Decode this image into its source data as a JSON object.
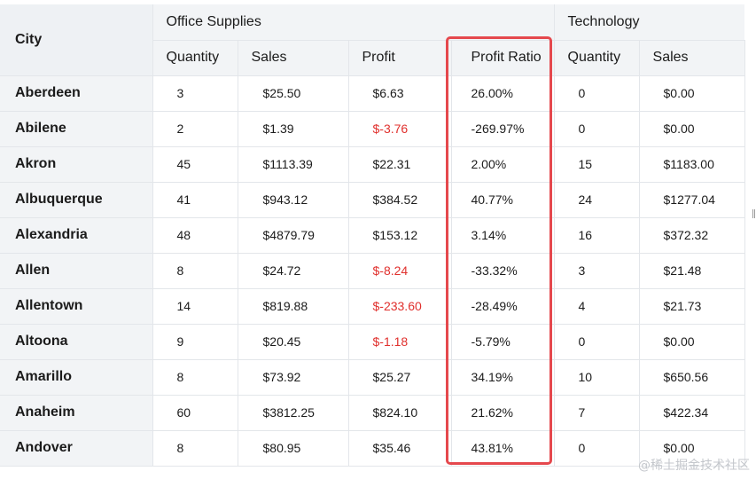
{
  "table": {
    "city_header": "City",
    "groups": {
      "office": "Office Supplies",
      "tech": "Technology"
    },
    "sub_headers": {
      "office_quantity": "Quantity",
      "office_sales": "Sales",
      "office_profit": "Profit",
      "office_ratio": "Profit Ratio",
      "tech_quantity": "Quantity",
      "tech_sales": "Sales"
    },
    "rows": [
      {
        "city": "Aberdeen",
        "oq": "3",
        "os": "$25.50",
        "op": "$6.63",
        "or": "26.00%",
        "tq": "0",
        "ts": "$0.00"
      },
      {
        "city": "Abilene",
        "oq": "2",
        "os": "$1.39",
        "op": "$-3.76",
        "or": "-269.97%",
        "tq": "0",
        "ts": "$0.00"
      },
      {
        "city": "Akron",
        "oq": "45",
        "os": "$1113.39",
        "op": "$22.31",
        "or": "2.00%",
        "tq": "15",
        "ts": "$1183.00"
      },
      {
        "city": "Albuquerque",
        "oq": "41",
        "os": "$943.12",
        "op": "$384.52",
        "or": "40.77%",
        "tq": "24",
        "ts": "$1277.04"
      },
      {
        "city": "Alexandria",
        "oq": "48",
        "os": "$4879.79",
        "op": "$153.12",
        "or": "3.14%",
        "tq": "16",
        "ts": "$372.32"
      },
      {
        "city": "Allen",
        "oq": "8",
        "os": "$24.72",
        "op": "$-8.24",
        "or": "-33.32%",
        "tq": "3",
        "ts": "$21.48"
      },
      {
        "city": "Allentown",
        "oq": "14",
        "os": "$819.88",
        "op": "$-233.60",
        "or": "-28.49%",
        "tq": "4",
        "ts": "$21.73"
      },
      {
        "city": "Altoona",
        "oq": "9",
        "os": "$20.45",
        "op": "$-1.18",
        "or": "-5.79%",
        "tq": "0",
        "ts": "$0.00"
      },
      {
        "city": "Amarillo",
        "oq": "8",
        "os": "$73.92",
        "op": "$25.27",
        "or": "34.19%",
        "tq": "10",
        "ts": "$650.56"
      },
      {
        "city": "Anaheim",
        "oq": "60",
        "os": "$3812.25",
        "op": "$824.10",
        "or": "21.62%",
        "tq": "7",
        "ts": "$422.34"
      },
      {
        "city": "Andover",
        "oq": "8",
        "os": "$80.95",
        "op": "$35.46",
        "or": "43.81%",
        "tq": "0",
        "ts": "$0.00"
      }
    ]
  },
  "colors": {
    "negative": "#e0302d",
    "highlight": "#e5484d"
  },
  "watermark": "@稀土掘金技术社区"
}
